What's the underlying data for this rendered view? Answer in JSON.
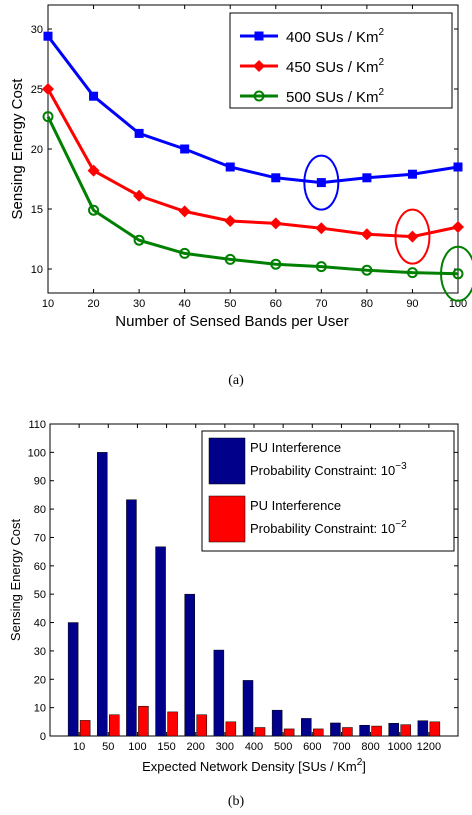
{
  "chart_data": [
    {
      "type": "line",
      "caption": "(a)",
      "xlabel": "Number of Sensed Bands per User",
      "ylabel": "Sensing Energy Cost",
      "x": [
        10,
        20,
        30,
        40,
        50,
        60,
        70,
        80,
        90,
        100
      ],
      "xticks": [
        "10",
        "20",
        "30",
        "40",
        "50",
        "60",
        "70",
        "80",
        "90",
        "100"
      ],
      "yticks": [
        "10",
        "15",
        "20",
        "25",
        "30"
      ],
      "xlim": [
        10,
        100
      ],
      "ylim": [
        8,
        32
      ],
      "grid": false,
      "legend_position": "top-right",
      "series": [
        {
          "name": "400 SUs / Km",
          "sup": "2",
          "color": "#0000ff",
          "marker": "square",
          "values": [
            29.4,
            24.4,
            21.3,
            20.0,
            18.5,
            17.6,
            17.2,
            17.6,
            17.9,
            18.5
          ],
          "highlight_x": 70
        },
        {
          "name": "450 SUs / Km",
          "sup": "2",
          "color": "#ff0000",
          "marker": "diamond",
          "values": [
            25.0,
            18.2,
            16.1,
            14.8,
            14.0,
            13.8,
            13.4,
            12.9,
            12.7,
            13.5
          ],
          "highlight_x": 90
        },
        {
          "name": "500 SUs / Km",
          "sup": "2",
          "color": "#008000",
          "marker": "circle",
          "values": [
            22.7,
            14.9,
            12.4,
            11.3,
            10.8,
            10.4,
            10.2,
            9.9,
            9.7,
            9.6
          ],
          "highlight_x": 100
        }
      ]
    },
    {
      "type": "bar",
      "caption": "(b)",
      "xlabel": "Expected Network Density [SUs / Km",
      "xlabel_sup": "2",
      "xlabel_end": "]",
      "ylabel": "Sensing Energy Cost",
      "categories": [
        "10",
        "50",
        "100",
        "150",
        "200",
        "300",
        "400",
        "500",
        "600",
        "700",
        "800",
        "1000",
        "1200"
      ],
      "yticks": [
        "0",
        "10",
        "20",
        "30",
        "40",
        "50",
        "60",
        "70",
        "80",
        "90",
        "100",
        "110"
      ],
      "ylim": [
        0,
        110
      ],
      "grid": false,
      "legend_position": "top-right",
      "series": [
        {
          "name_line1": "PU Interference",
          "name_line2": "Probability Constraint: 10",
          "sup": "−3",
          "color": "#00008b",
          "values": [
            40,
            100,
            83.3,
            66.7,
            50,
            30.3,
            19.6,
            9.1,
            6.2,
            4.6,
            3.8,
            4.5,
            5.4
          ]
        },
        {
          "name_line1": "PU Interference",
          "name_line2": "Probability Constraint: 10",
          "sup": "−2",
          "color": "#ff0000",
          "values": [
            5.5,
            7.5,
            10.5,
            8.5,
            7.5,
            5.0,
            3.0,
            2.5,
            2.5,
            3.0,
            3.5,
            4.0,
            5.0
          ]
        }
      ]
    }
  ]
}
